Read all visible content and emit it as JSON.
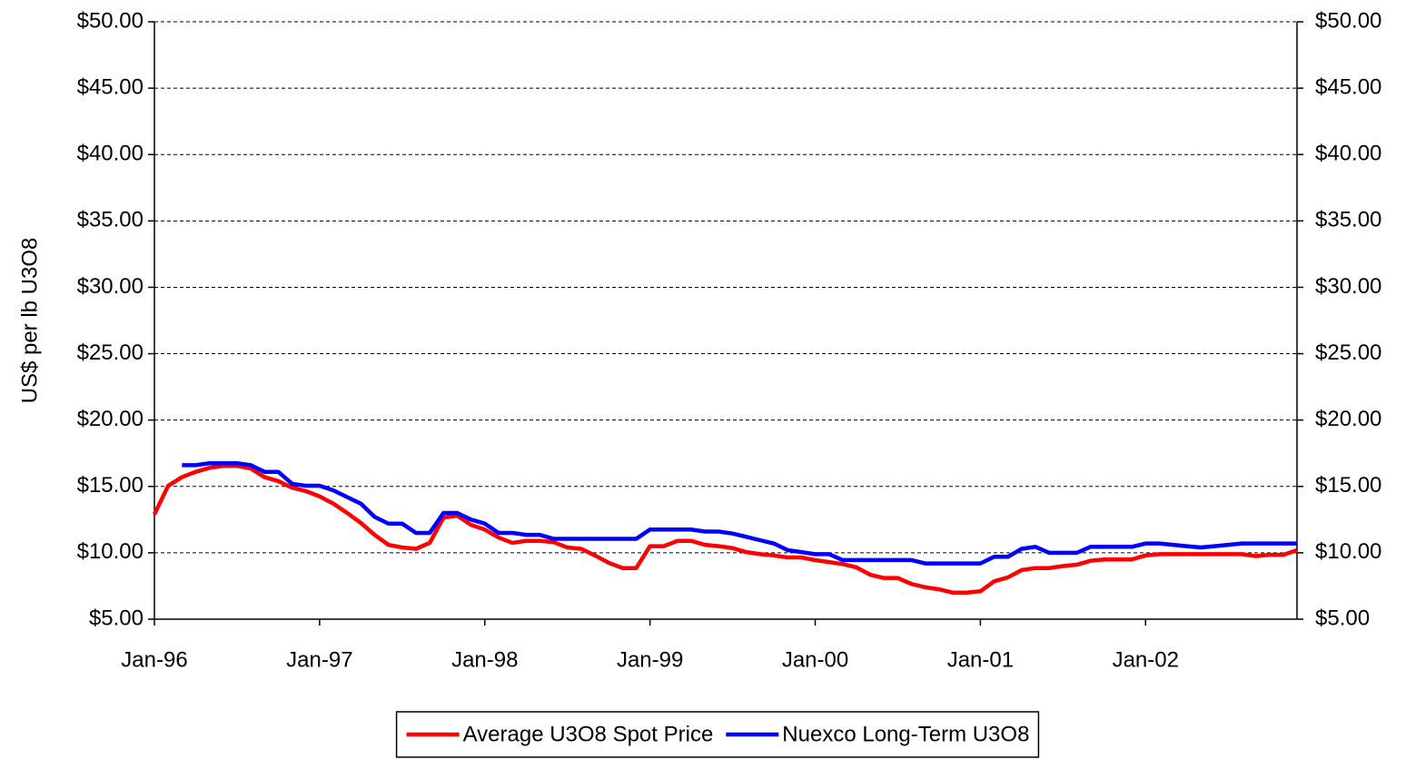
{
  "chart_data": {
    "type": "line",
    "y_label": "US$ per lb U3O8",
    "categories": [
      "Jan-96",
      null,
      null,
      null,
      null,
      null,
      null,
      null,
      null,
      null,
      null,
      null,
      "Jan-97",
      null,
      null,
      null,
      null,
      null,
      null,
      null,
      null,
      null,
      null,
      null,
      "Jan-98",
      null,
      null,
      null,
      null,
      null,
      null,
      null,
      null,
      null,
      null,
      null,
      "Jan-99",
      null,
      null,
      null,
      null,
      null,
      null,
      null,
      null,
      null,
      null,
      null,
      "Jan-00",
      null,
      null,
      null,
      null,
      null,
      null,
      null,
      null,
      null,
      null,
      null,
      "Jan-01",
      null,
      null,
      null,
      null,
      null,
      null,
      null,
      null,
      null,
      null,
      null,
      "Jan-02",
      null,
      null,
      null,
      null,
      null,
      null,
      null,
      null,
      null,
      null,
      null
    ],
    "series": [
      {
        "name": "Average U3O8 Spot Price",
        "color": "#ff0000",
        "values": [
          12.9,
          15.05,
          15.7,
          16.1,
          16.4,
          16.55,
          16.55,
          16.35,
          15.7,
          15.4,
          14.9,
          14.65,
          14.25,
          13.7,
          13.0,
          12.25,
          11.35,
          10.6,
          10.4,
          10.3,
          10.75,
          12.65,
          12.8,
          12.1,
          11.75,
          11.15,
          10.75,
          10.9,
          10.9,
          10.8,
          10.4,
          10.3,
          9.8,
          9.25,
          8.85,
          8.85,
          10.5,
          10.5,
          10.9,
          10.9,
          10.6,
          10.5,
          10.35,
          10.05,
          9.9,
          9.8,
          9.65,
          9.65,
          9.45,
          9.3,
          9.15,
          8.9,
          8.35,
          8.1,
          8.1,
          7.65,
          7.4,
          7.25,
          7.0,
          7.0,
          7.1,
          7.85,
          8.15,
          8.7,
          8.85,
          8.85,
          9.0,
          9.1,
          9.4,
          9.5,
          9.5,
          9.5,
          9.8,
          9.9,
          9.9,
          9.9,
          9.9,
          9.9,
          9.9,
          9.9,
          9.75,
          9.85,
          9.85,
          10.2
        ]
      },
      {
        "name": "Nuexco Long-Term U3O8",
        "color": "#0000ff",
        "values": [
          null,
          null,
          16.6,
          16.6,
          16.75,
          16.75,
          16.75,
          16.6,
          16.1,
          16.1,
          15.2,
          15.05,
          15.05,
          14.7,
          14.2,
          13.7,
          12.7,
          12.2,
          12.2,
          11.5,
          11.5,
          13.0,
          13.0,
          12.5,
          12.2,
          11.5,
          11.5,
          11.35,
          11.35,
          11.05,
          11.05,
          11.05,
          11.05,
          11.05,
          11.05,
          11.05,
          11.75,
          11.75,
          11.75,
          11.75,
          11.6,
          11.6,
          11.45,
          11.2,
          10.95,
          10.7,
          10.2,
          10.05,
          9.9,
          9.9,
          9.45,
          9.45,
          9.45,
          9.45,
          9.45,
          9.45,
          9.2,
          9.2,
          9.2,
          9.2,
          9.2,
          9.7,
          9.7,
          10.3,
          10.45,
          10.0,
          10.0,
          10.0,
          10.45,
          10.45,
          10.45,
          10.45,
          10.7,
          10.7,
          10.6,
          10.5,
          10.4,
          10.5,
          10.6,
          10.7,
          10.7,
          10.7,
          10.7,
          10.7
        ]
      }
    ],
    "ylim": [
      5,
      50
    ],
    "yticks": [
      {
        "value": 5,
        "label": "$5.00"
      },
      {
        "value": 10,
        "label": "$10.00"
      },
      {
        "value": 15,
        "label": "$15.00"
      },
      {
        "value": 20,
        "label": "$20.00"
      },
      {
        "value": 25,
        "label": "$25.00"
      },
      {
        "value": 30,
        "label": "$30.00"
      },
      {
        "value": 35,
        "label": "$35.00"
      },
      {
        "value": 40,
        "label": "$40.00"
      },
      {
        "value": 45,
        "label": "$45.00"
      },
      {
        "value": 50,
        "label": "$50.00"
      }
    ],
    "y2lim": [
      5,
      50
    ],
    "y2ticks": [
      {
        "value": 5,
        "label": "$5.00"
      },
      {
        "value": 10,
        "label": "$10.00"
      },
      {
        "value": 15,
        "label": "$15.00"
      },
      {
        "value": 20,
        "label": "$20.00"
      },
      {
        "value": 25,
        "label": "$25.00"
      },
      {
        "value": 30,
        "label": "$30.00"
      },
      {
        "value": 35,
        "label": "$35.00"
      },
      {
        "value": 40,
        "label": "$40.00"
      },
      {
        "value": 45,
        "label": "$45.00"
      },
      {
        "value": 50,
        "label": "$50.00"
      }
    ],
    "grid": true,
    "legend": "bottom"
  }
}
